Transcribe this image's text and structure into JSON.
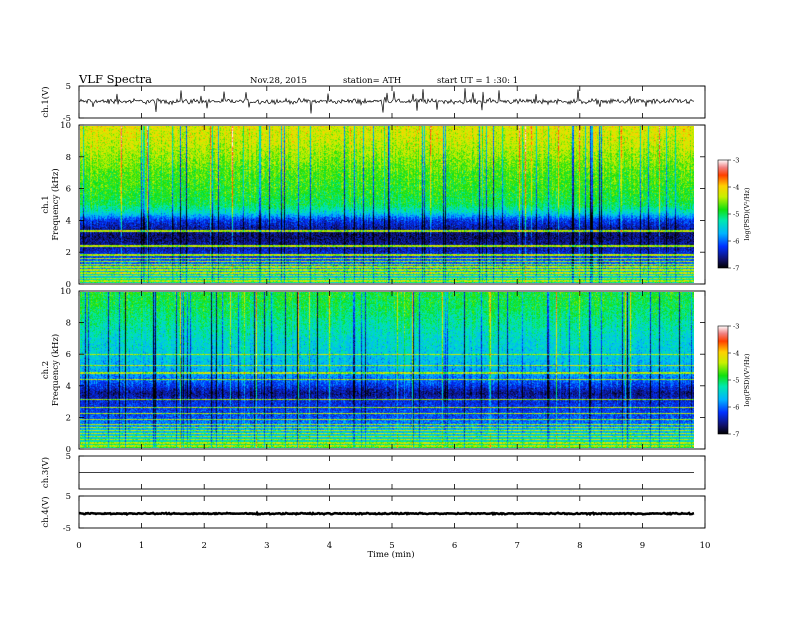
{
  "header": {
    "title": "VLF  Spectra",
    "date": "Nov.28, 2015",
    "station": "station= ATH",
    "start": "start  UT =   1  :30: 1"
  },
  "chart_data": {
    "type": "heatmap",
    "title": "VLF  Spectra",
    "x_axis": {
      "label": "Time  (min)",
      "range": [
        0,
        10
      ],
      "ticks": [
        "0",
        "1",
        "2",
        "3",
        "4",
        "5",
        "6",
        "7",
        "8",
        "9",
        "10"
      ],
      "data_end": 9.82
    },
    "panels": [
      {
        "kind": "waveform",
        "ylabel": "ch.1(V)",
        "ylim": [
          -5,
          5
        ],
        "yticks": [
          "5",
          "-5"
        ],
        "baseline": 0.2,
        "noise_amp": 1.0,
        "spike_amp": 3.5
      },
      {
        "kind": "spectrogram",
        "ylabel_line1": "ch.1",
        "ylabel_line2": "Frequency  (kHz)",
        "ylim": [
          0,
          10
        ],
        "yticks": [
          "0",
          "2",
          "4",
          "6",
          "8",
          "10"
        ],
        "colorbar": {
          "label": "log(PSD)(V²/Hz)",
          "range": [
            -7,
            -3
          ],
          "ticks": [
            "-7",
            "-6",
            "-5",
            "-4",
            "-3"
          ]
        },
        "profile_freq_khz": [
          0,
          0.5,
          1,
          1.5,
          2,
          2.5,
          3,
          3.5,
          4,
          4.5,
          5,
          6,
          7,
          8,
          9,
          10
        ],
        "profile_logpsd": [
          -5.2,
          -5.6,
          -5.9,
          -6.1,
          -6.4,
          -6.6,
          -6.7,
          -6.5,
          -6.2,
          -5.4,
          -5.0,
          -4.8,
          -4.7,
          -4.5,
          -4.3,
          -4.2
        ],
        "bright_lines_khz": [
          0.1,
          0.25,
          0.45,
          0.6,
          0.8,
          1.0,
          1.15,
          1.35,
          1.55,
          1.75,
          2.35,
          3.3
        ]
      },
      {
        "kind": "spectrogram",
        "ylabel_line1": "ch.2",
        "ylabel_line2": "Frequency  (kHz)",
        "ylim": [
          0,
          10
        ],
        "yticks": [
          "0",
          "2",
          "4",
          "6",
          "8",
          "10"
        ],
        "colorbar": {
          "label": "log(PSD)(V²/Hz)",
          "range": [
            -7,
            -3
          ],
          "ticks": [
            "-7",
            "-6",
            "-5",
            "-4",
            "-3"
          ]
        },
        "profile_freq_khz": [
          0,
          0.5,
          1,
          1.5,
          2,
          2.5,
          3,
          3.5,
          4,
          4.5,
          5,
          6,
          7,
          8,
          9,
          10
        ],
        "profile_logpsd": [
          -5.0,
          -5.4,
          -5.6,
          -5.9,
          -6.1,
          -6.2,
          -6.3,
          -6.6,
          -6.2,
          -5.9,
          -5.7,
          -5.5,
          -5.4,
          -5.2,
          -5.0,
          -4.9
        ],
        "bright_lines_khz": [
          0.1,
          0.3,
          0.5,
          0.7,
          0.9,
          1.1,
          1.3,
          1.5,
          1.8,
          2.2,
          2.6,
          3.1,
          4.4,
          4.8,
          5.3,
          6.0
        ]
      },
      {
        "kind": "waveform",
        "ylabel": "ch.3(V)",
        "ylim": [
          -5,
          5
        ],
        "yticks": [
          "5"
        ],
        "baseline": 0,
        "noise_amp": 0,
        "spike_amp": 0
      },
      {
        "kind": "waveform",
        "ylabel": "ch.4(V)",
        "ylim": [
          -5,
          5
        ],
        "yticks": [
          "5",
          "-5"
        ],
        "baseline": -0.5,
        "noise_amp": 0.25,
        "spike_amp": 0
      }
    ]
  }
}
